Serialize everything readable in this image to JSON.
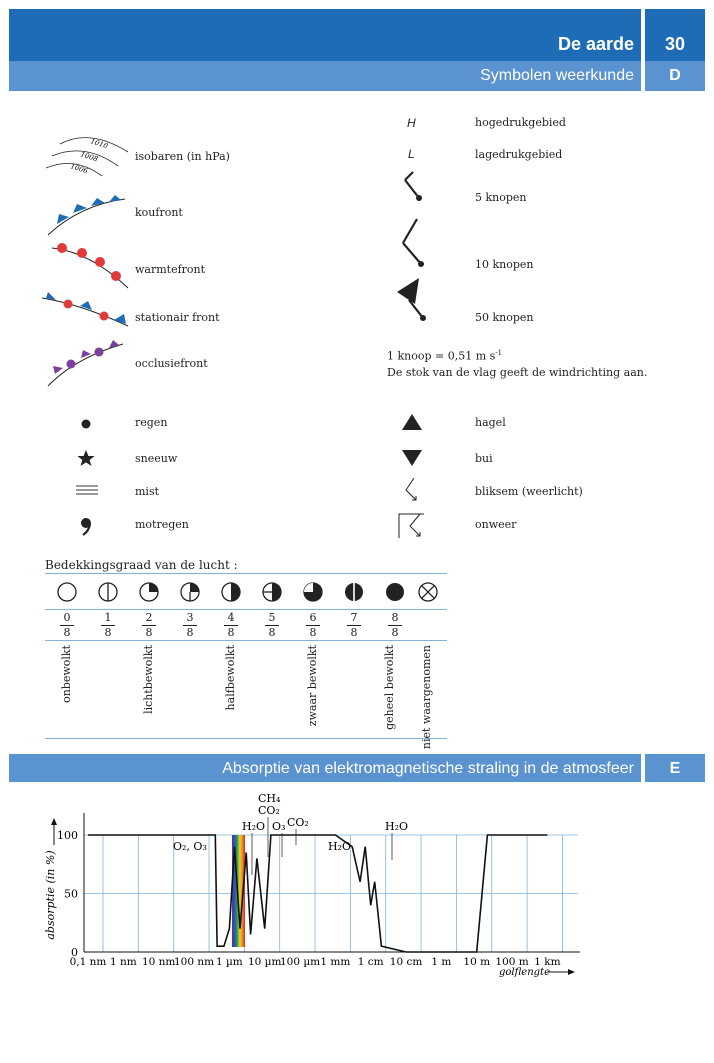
{
  "header": {
    "title": "De aarde",
    "page_number": "30",
    "subtitle": "Symbolen weerkunde",
    "section_letter": "D"
  },
  "left_symbols": [
    {
      "label": "isobaren (in hPa)",
      "isobars": [
        "1010",
        "1008",
        "1006"
      ]
    },
    {
      "label": "koufront"
    },
    {
      "label": "warmtefront"
    },
    {
      "label": "stationair front"
    },
    {
      "label": "occlusiefront"
    }
  ],
  "right_symbols": [
    {
      "symbol": "H",
      "label": "hogedrukgebied"
    },
    {
      "symbol": "L",
      "label": "lagedrukgebied"
    },
    {
      "label": "5 knopen"
    },
    {
      "label": "10 knopen"
    },
    {
      "label": "50 knopen"
    }
  ],
  "knot_note": {
    "line1": "1 knoop = 0,51 m s",
    "line1_sup": "-1",
    "line2": "De stok van de vlag geeft de windrichting aan."
  },
  "precip_left": [
    "regen",
    "sneeuw",
    "mist",
    "motregen"
  ],
  "precip_right": [
    "hagel",
    "bui",
    "bliksem (weerlicht)",
    "onweer"
  ],
  "cloud_cover": {
    "title": "Bedekkingsgraad van de lucht :",
    "fractions": [
      {
        "n": "0",
        "d": "8"
      },
      {
        "n": "1",
        "d": "8"
      },
      {
        "n": "2",
        "d": "8"
      },
      {
        "n": "3",
        "d": "8"
      },
      {
        "n": "4",
        "d": "8"
      },
      {
        "n": "5",
        "d": "8"
      },
      {
        "n": "6",
        "d": "8"
      },
      {
        "n": "7",
        "d": "8"
      },
      {
        "n": "8",
        "d": "8"
      }
    ],
    "labels": [
      "onbewolkt",
      "lichtbewolkt",
      "halfbewolkt",
      "zwaar bewolkt",
      "geheel bewolkt",
      "niet waargenomen"
    ]
  },
  "section_e": {
    "title": "Absorptie van elektromagnetische straling in de atmosfeer",
    "letter": "E"
  },
  "chart_data": {
    "type": "line",
    "ylabel": "absorptie (in %)",
    "xlabel": "golflengte",
    "ylim": [
      0,
      100
    ],
    "yticks": [
      "100",
      "50",
      "0"
    ],
    "xticks": [
      "0,1 nm",
      "1 nm",
      "10 nm",
      "100 nm",
      "1 µm",
      "10 µm",
      "100 µm",
      "1 mm",
      "1 cm",
      "10 cm",
      "1 m",
      "10 m",
      "100 m",
      "1 km"
    ],
    "gas_labels": [
      "O₂, O₃",
      "H₂O",
      "CH₄",
      "CO₂",
      "O₃",
      "CO₂",
      "H₂O",
      "H₂O"
    ],
    "series": [
      {
        "x": [
          "0,1 nm",
          "1 nm",
          "10 nm",
          "100 nm",
          "0.4 µm",
          "0.45 µm",
          "0.55 µm",
          "0.7 µm",
          "1 µm",
          "1.4 µm",
          "2 µm",
          "3 µm",
          "4 µm",
          "6 µm",
          "10 µm",
          "15 µm",
          "30 µm",
          "100 µm",
          "1 mm",
          "3 mm",
          "5 mm",
          "7 mm",
          "1 cm",
          "1.3 cm",
          "2 cm",
          "10 cm",
          "1 m",
          "10 m",
          "20 m",
          "100 m",
          "1 km"
        ],
        "values": [
          100,
          100,
          100,
          100,
          100,
          5,
          5,
          5,
          20,
          90,
          20,
          85,
          15,
          80,
          20,
          100,
          100,
          100,
          100,
          90,
          60,
          90,
          40,
          60,
          5,
          0,
          0,
          0,
          100,
          100,
          100
        ]
      }
    ]
  },
  "colors": {
    "header_dark": "#1e6cb6",
    "header_light": "#5a93cf",
    "grid": "#7fb3dc",
    "cold_front": "#1e6cb6",
    "warm_front": "#e03a3a",
    "occlusion": "#7b3fa0"
  }
}
